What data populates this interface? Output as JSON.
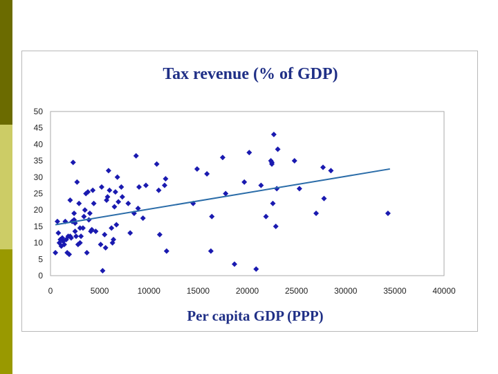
{
  "slide": {
    "band_colors": [
      "#6b6b00",
      "#cccc66",
      "#999900"
    ]
  },
  "chart_data": {
    "type": "scatter",
    "title": "Tax revenue (% of GDP)",
    "xlabel": "Per capita GDP (PPP)",
    "ylabel": "",
    "xlim": [
      0,
      40000
    ],
    "ylim": [
      0,
      50
    ],
    "xticks": [
      0,
      5000,
      10000,
      15000,
      20000,
      25000,
      30000,
      35000,
      40000
    ],
    "yticks": [
      0,
      5,
      10,
      15,
      20,
      25,
      30,
      35,
      40,
      45,
      50
    ],
    "grid": false,
    "legend": "none",
    "marker": "diamond",
    "point_color": "#1a1ab0",
    "trend_color": "#2a6ca8",
    "trendline": {
      "x": [
        500,
        34500
      ],
      "y": [
        15.5,
        32.5
      ]
    },
    "points": [
      [
        500,
        7
      ],
      [
        700,
        16.5
      ],
      [
        800,
        13
      ],
      [
        900,
        10
      ],
      [
        1000,
        11
      ],
      [
        1100,
        9
      ],
      [
        1200,
        11.5
      ],
      [
        1300,
        10.5
      ],
      [
        1400,
        9.5
      ],
      [
        1500,
        16.5
      ],
      [
        1600,
        11
      ],
      [
        1700,
        7
      ],
      [
        1800,
        12
      ],
      [
        1900,
        6.5
      ],
      [
        2000,
        23
      ],
      [
        2000,
        12
      ],
      [
        2100,
        11.5
      ],
      [
        2200,
        16.5
      ],
      [
        2300,
        34.5
      ],
      [
        2400,
        17
      ],
      [
        2400,
        19
      ],
      [
        2500,
        16
      ],
      [
        2500,
        13.5
      ],
      [
        2600,
        12
      ],
      [
        2700,
        28.5
      ],
      [
        2800,
        9.5
      ],
      [
        2900,
        22
      ],
      [
        3000,
        14.5
      ],
      [
        3000,
        10
      ],
      [
        3100,
        12
      ],
      [
        3300,
        14.5
      ],
      [
        3400,
        18
      ],
      [
        3500,
        20
      ],
      [
        3600,
        25
      ],
      [
        3700,
        7
      ],
      [
        3800,
        25.5
      ],
      [
        3900,
        17
      ],
      [
        4000,
        19
      ],
      [
        4100,
        13.5
      ],
      [
        4200,
        14
      ],
      [
        4300,
        26
      ],
      [
        4400,
        22
      ],
      [
        4600,
        13.5
      ],
      [
        5100,
        9.5
      ],
      [
        5200,
        27
      ],
      [
        5300,
        1.5
      ],
      [
        5500,
        12.5
      ],
      [
        5600,
        8.5
      ],
      [
        5700,
        23
      ],
      [
        5800,
        24
      ],
      [
        5900,
        32
      ],
      [
        6000,
        26
      ],
      [
        6200,
        14.5
      ],
      [
        6300,
        10
      ],
      [
        6400,
        11
      ],
      [
        6500,
        21
      ],
      [
        6600,
        25.5
      ],
      [
        6700,
        15.5
      ],
      [
        6800,
        30
      ],
      [
        6900,
        22.5
      ],
      [
        7200,
        27
      ],
      [
        7300,
        24
      ],
      [
        7900,
        22
      ],
      [
        8100,
        13
      ],
      [
        8500,
        19
      ],
      [
        8700,
        36.5
      ],
      [
        8900,
        20.5
      ],
      [
        9000,
        27
      ],
      [
        9400,
        17.5
      ],
      [
        9700,
        27.5
      ],
      [
        10800,
        34
      ],
      [
        11000,
        26
      ],
      [
        11100,
        12.5
      ],
      [
        11600,
        27.5
      ],
      [
        11700,
        29.5
      ],
      [
        11800,
        7.5
      ],
      [
        14500,
        22
      ],
      [
        14900,
        32.5
      ],
      [
        15900,
        31
      ],
      [
        16300,
        7.5
      ],
      [
        16400,
        18
      ],
      [
        17500,
        36
      ],
      [
        17800,
        25
      ],
      [
        18700,
        3.5
      ],
      [
        19700,
        28.5
      ],
      [
        20200,
        37.5
      ],
      [
        20900,
        2
      ],
      [
        21400,
        27.5
      ],
      [
        21900,
        18
      ],
      [
        22400,
        35
      ],
      [
        22500,
        34.5
      ],
      [
        22500,
        34
      ],
      [
        22600,
        22
      ],
      [
        22700,
        43
      ],
      [
        22900,
        15
      ],
      [
        23000,
        26.5
      ],
      [
        23100,
        38.5
      ],
      [
        24800,
        35
      ],
      [
        25300,
        26.5
      ],
      [
        27000,
        19
      ],
      [
        27700,
        33
      ],
      [
        27800,
        23.5
      ],
      [
        28500,
        32
      ],
      [
        34300,
        19
      ]
    ]
  }
}
